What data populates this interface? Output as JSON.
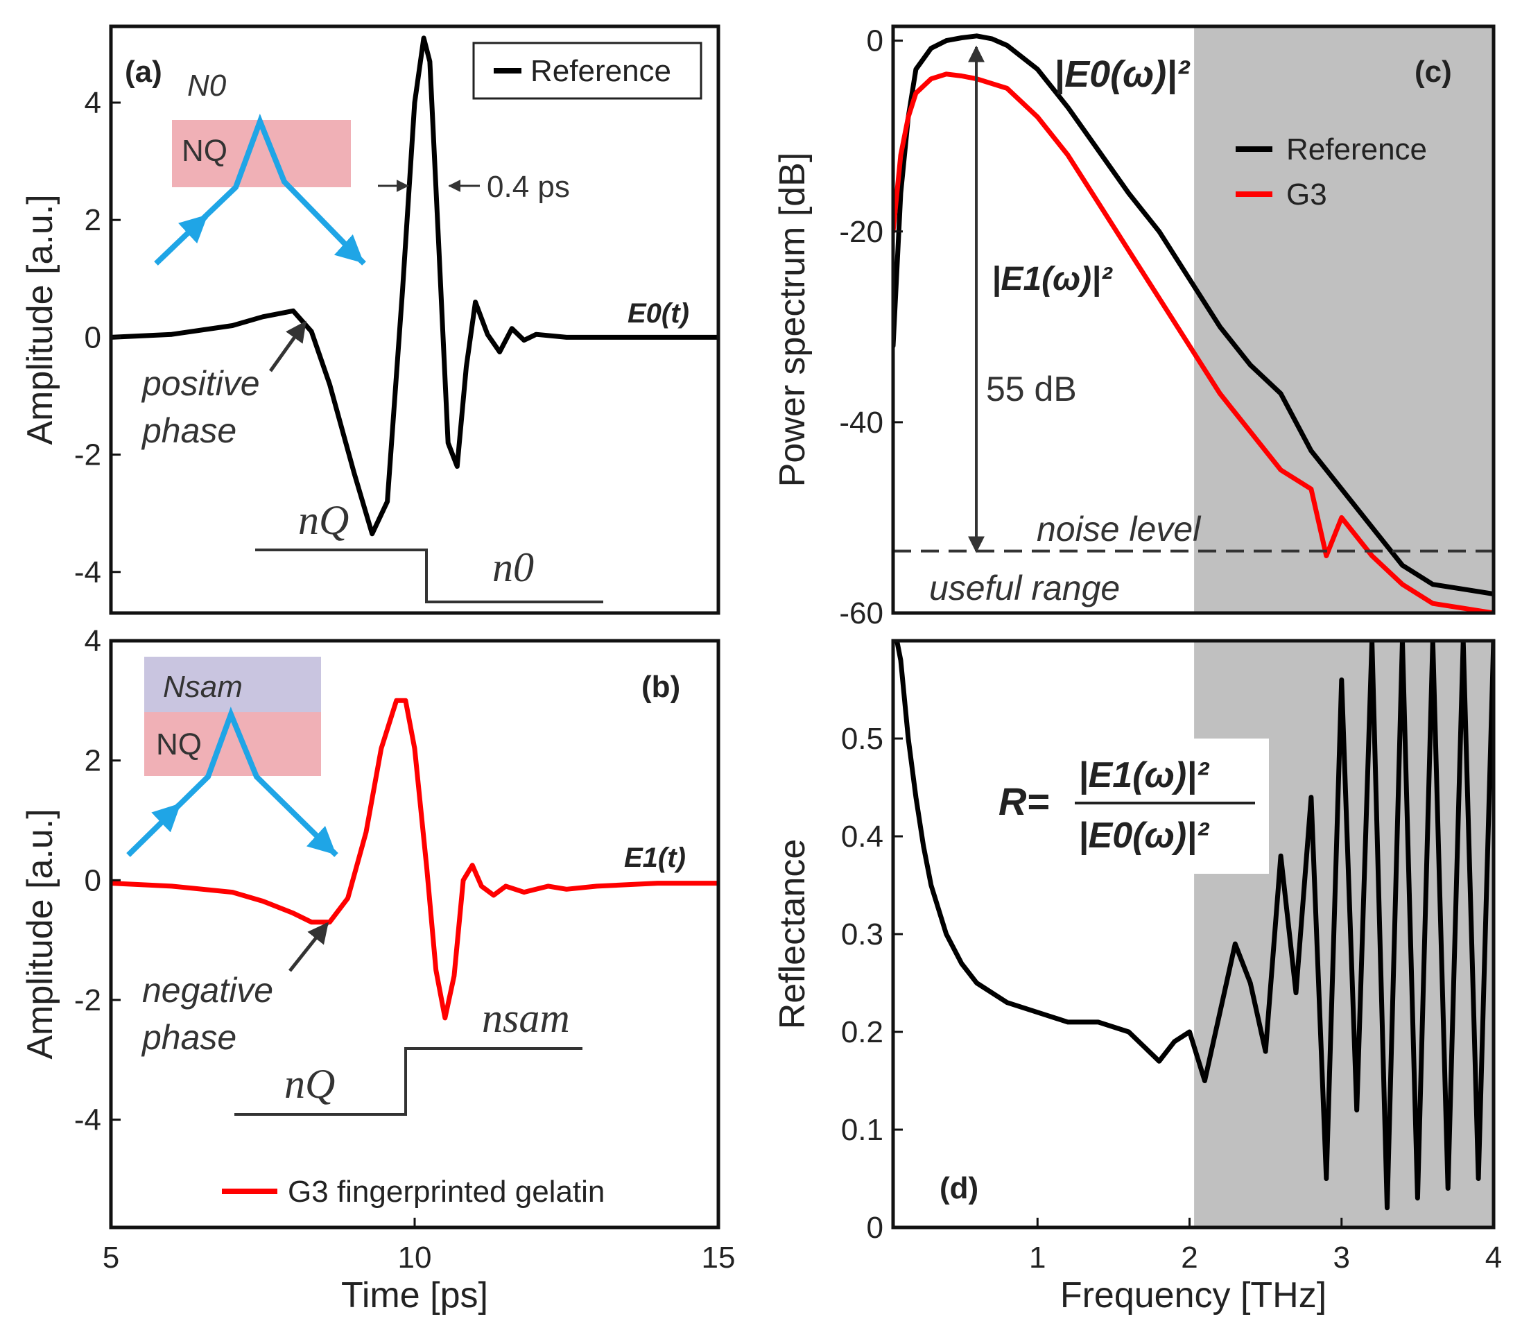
{
  "colors": {
    "reference": "#000000",
    "sample": "#ff0000",
    "nq_box": "#f0b0b6",
    "nsam_box": "#c9c5e0",
    "ray": "#1fa5e6",
    "shade": "#c0c0c0",
    "noise": "#333333",
    "step": "#333333"
  },
  "panels": {
    "a": {
      "label": "(a)",
      "legend": "Reference",
      "signal_label": "E0(t)",
      "medium_top": "N0",
      "medium_bottom": "NQ",
      "pulse_width": "0.4 ps",
      "phase_line1": "positive",
      "phase_line2": "phase",
      "step_left": "nQ",
      "step_right": "n0"
    },
    "b": {
      "label": "(b)",
      "legend": "G3 fingerprinted gelatin",
      "signal_label": "E1(t)",
      "medium_top": "Nsam",
      "medium_bottom": "NQ",
      "phase_line1": "negative",
      "phase_line2": "phase",
      "step_left": "nQ",
      "step_right": "nsam"
    },
    "c": {
      "label": "(c)",
      "legend": [
        "Reference",
        "G3"
      ],
      "e0_label": "|E0(ω)|²",
      "e1_label": "|E1(ω)|²",
      "dynamic_range": "55 dB",
      "noise_label": "noise level",
      "useful_label": "useful range"
    },
    "d": {
      "label": "(d)",
      "equation": {
        "lhs": "R=",
        "num": "|E1(ω)|²",
        "den": "|E0(ω)|²"
      }
    }
  },
  "axes": {
    "time_xlabel": "Time [ps]",
    "amp_ylabel": "Amplitude [a.u.]",
    "freq_xlabel": "Frequency [THz]",
    "power_ylabel": "Power spectrum [dB]",
    "refl_ylabel": "Reflectance",
    "time_ticks": [
      "5",
      "10",
      "15"
    ],
    "amp_ticks_a": [
      "4",
      "2",
      "0",
      "-2",
      "-4"
    ],
    "amp_ticks_b": [
      "4",
      "2",
      "0",
      "-2",
      "-4"
    ],
    "power_ticks": [
      "0",
      "-20",
      "-40",
      "-60"
    ],
    "refl_ticks": [
      "0.5",
      "0.4",
      "0.3",
      "0.2",
      "0.1",
      "0"
    ],
    "freq_ticks": [
      "1",
      "2",
      "3",
      "4"
    ]
  },
  "chart_data": [
    {
      "id": "a",
      "type": "line",
      "title": "(a)",
      "xlabel": "Time [ps]",
      "ylabel": "Amplitude [a.u.]",
      "xlim": [
        5,
        15
      ],
      "ylim": [
        -4.7,
        5.3
      ],
      "series": [
        {
          "name": "Reference",
          "x": [
            5,
            6,
            7,
            7.5,
            8,
            8.3,
            8.6,
            9,
            9.3,
            9.55,
            9.8,
            10.0,
            10.15,
            10.25,
            10.4,
            10.55,
            10.7,
            10.85,
            11.0,
            11.2,
            11.4,
            11.6,
            11.8,
            12.0,
            12.5,
            13,
            14,
            15
          ],
          "y": [
            0,
            0.05,
            0.2,
            0.35,
            0.45,
            0.1,
            -0.8,
            -2.3,
            -3.35,
            -2.8,
            0.8,
            4.0,
            5.1,
            4.7,
            1.5,
            -1.8,
            -2.2,
            -0.5,
            0.6,
            0.05,
            -0.25,
            0.15,
            -0.05,
            0.05,
            0,
            0,
            0,
            0
          ]
        }
      ]
    },
    {
      "id": "b",
      "type": "line",
      "title": "(b)",
      "xlabel": "Time [ps]",
      "ylabel": "Amplitude [a.u.]",
      "xlim": [
        5,
        15
      ],
      "ylim": [
        -5.8,
        4.0
      ],
      "series": [
        {
          "name": "G3 fingerprinted gelatin",
          "x": [
            5,
            6,
            7,
            7.5,
            8,
            8.3,
            8.6,
            8.9,
            9.2,
            9.45,
            9.7,
            9.85,
            10.0,
            10.2,
            10.35,
            10.5,
            10.65,
            10.8,
            10.95,
            11.1,
            11.3,
            11.5,
            11.8,
            12.2,
            12.5,
            13,
            14,
            15
          ],
          "y": [
            -0.05,
            -0.1,
            -0.2,
            -0.35,
            -0.55,
            -0.7,
            -0.7,
            -0.3,
            0.8,
            2.2,
            3.0,
            3.0,
            2.2,
            0.2,
            -1.5,
            -2.3,
            -1.6,
            0.0,
            0.25,
            -0.1,
            -0.25,
            -0.1,
            -0.2,
            -0.1,
            -0.15,
            -0.1,
            -0.05,
            -0.05
          ]
        }
      ]
    },
    {
      "id": "c",
      "type": "line",
      "title": "(c)",
      "xlabel": "Frequency [THz]",
      "ylabel": "Power spectrum [dB]",
      "xlim": [
        0.05,
        4
      ],
      "ylim": [
        -60,
        1.5
      ],
      "shaded_from": 2.03,
      "noise_level": -53.5,
      "series": [
        {
          "name": "Reference",
          "x": [
            0.05,
            0.1,
            0.15,
            0.2,
            0.3,
            0.4,
            0.5,
            0.6,
            0.7,
            0.8,
            1.0,
            1.2,
            1.4,
            1.6,
            1.8,
            2.0,
            2.2,
            2.4,
            2.6,
            2.8,
            3.0,
            3.2,
            3.4,
            3.6,
            3.8,
            4.0
          ],
          "y": [
            -32,
            -16,
            -8,
            -3,
            -0.8,
            0,
            0.3,
            0.5,
            0.2,
            -0.5,
            -3,
            -7,
            -11.5,
            -16,
            -20,
            -25,
            -30,
            -34,
            -37,
            -43,
            -47,
            -51,
            -55,
            -57,
            -57.5,
            -58
          ]
        },
        {
          "name": "G3",
          "x": [
            0.05,
            0.1,
            0.15,
            0.2,
            0.3,
            0.4,
            0.5,
            0.6,
            0.8,
            1.0,
            1.2,
            1.4,
            1.6,
            1.8,
            2.0,
            2.2,
            2.4,
            2.6,
            2.8,
            2.9,
            3.0,
            3.2,
            3.4,
            3.6,
            3.8,
            4.0
          ],
          "y": [
            -20,
            -12,
            -8,
            -5.5,
            -4,
            -3.5,
            -3.7,
            -4,
            -5,
            -8,
            -12,
            -17,
            -22,
            -27,
            -32,
            -37,
            -41,
            -45,
            -47,
            -54,
            -50,
            -54,
            -57,
            -59,
            -59.5,
            -60
          ]
        }
      ]
    },
    {
      "id": "d",
      "type": "line",
      "title": "(d)",
      "xlabel": "Frequency [THz]",
      "ylabel": "Reflectance",
      "xlim": [
        0.05,
        4
      ],
      "ylim": [
        0,
        0.6
      ],
      "series": [
        {
          "name": "R",
          "x": [
            0.05,
            0.1,
            0.15,
            0.2,
            0.25,
            0.3,
            0.4,
            0.5,
            0.6,
            0.8,
            1.0,
            1.2,
            1.4,
            1.6,
            1.8,
            1.9,
            2.0,
            2.1,
            2.2,
            2.3,
            2.4,
            2.5,
            2.6,
            2.7,
            2.8,
            2.9,
            3.0,
            3.1,
            3.2,
            3.3,
            3.4,
            3.5,
            3.6,
            3.7,
            3.8,
            3.9,
            4.0
          ],
          "y": [
            0.62,
            0.58,
            0.5,
            0.44,
            0.39,
            0.35,
            0.3,
            0.27,
            0.25,
            0.23,
            0.22,
            0.21,
            0.21,
            0.2,
            0.17,
            0.19,
            0.2,
            0.15,
            0.22,
            0.29,
            0.25,
            0.18,
            0.38,
            0.24,
            0.44,
            0.05,
            0.56,
            0.12,
            0.6,
            0.02,
            0.6,
            0.03,
            0.6,
            0.04,
            0.6,
            0.05,
            0.6
          ]
        }
      ]
    }
  ]
}
